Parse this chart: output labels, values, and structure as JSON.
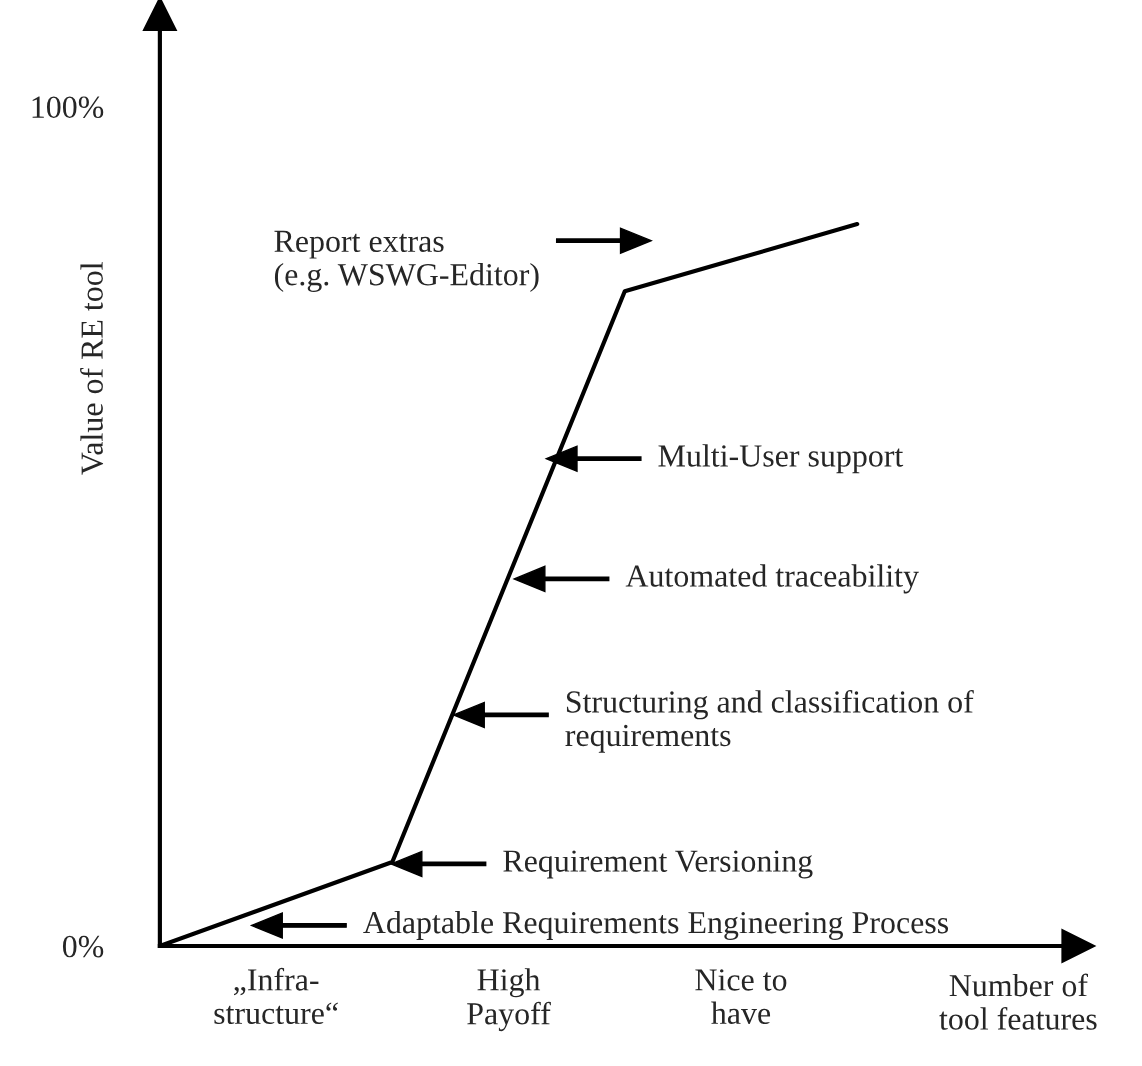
{
  "chart_data": {
    "type": "line",
    "ylabel": "Value of RE tool",
    "xlabel": "Number of\ntool features",
    "categories": [
      null,
      null,
      null,
      null
    ],
    "series": [
      {
        "color": "#000000",
        "values": [
          0,
          10,
          78,
          86
        ]
      }
    ],
    "ylim": [
      0,
      111
    ],
    "yticks": [
      {
        "value": 0,
        "label": "0%"
      },
      {
        "value": 100,
        "label": "100%"
      }
    ],
    "marker": "none",
    "line_style": "solid",
    "annotations": [
      "Report extras\n(e.g. WSWG-Editor)",
      "Multi-User support",
      "Automated traceability",
      "Structuring and classification of\nrequirements",
      "Requirement Versioning",
      "Adaptable Requirements Engineering Process",
      "„Infra-\nstructure“",
      "High\nPayoff",
      "Nice to\nhave"
    ]
  }
}
